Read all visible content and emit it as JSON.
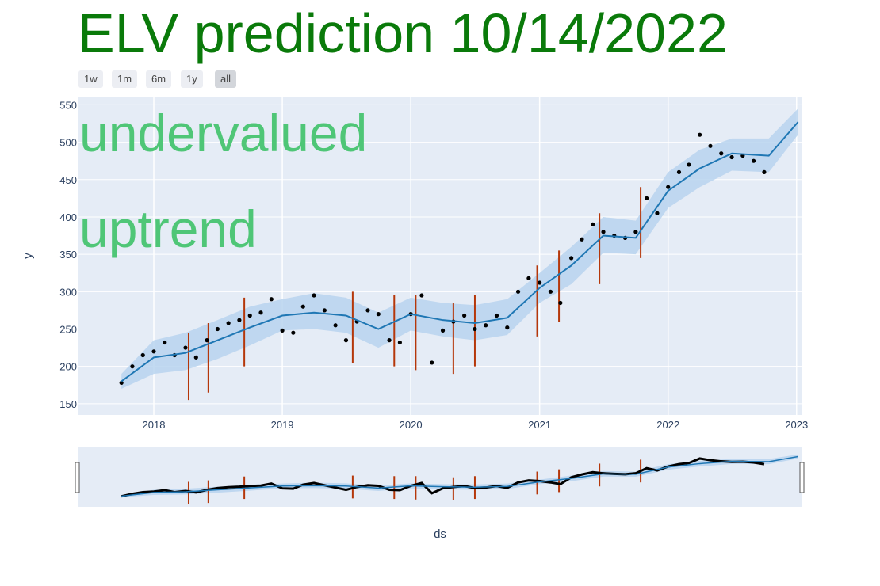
{
  "title": "ELV prediction 10/14/2022",
  "range_selector": [
    "1w",
    "1m",
    "6m",
    "1y",
    "all"
  ],
  "range_selector_active": "all",
  "annotations": [
    "undervalued",
    "uptrend"
  ],
  "colors": {
    "title": "#0a7a0a",
    "annotation": "#4fc677",
    "points": "#000000",
    "trend": "#1f77b4",
    "band": "#b9d3ee",
    "changepoints": "#b5370a",
    "plot_bg": "#e5ecf6"
  },
  "chart_data": {
    "type": "line",
    "xlabel": "ds",
    "ylabel": "y",
    "x_ticks": [
      "2018",
      "2019",
      "2020",
      "2021",
      "2022",
      "2023"
    ],
    "y_ticks": [
      150,
      200,
      250,
      300,
      350,
      400,
      450,
      500,
      550
    ],
    "xlim": [
      "2017-06-01",
      "2023-01-15"
    ],
    "ylim": [
      135,
      560
    ],
    "grid": true,
    "rangeslider": true,
    "series": [
      {
        "name": "",
        "kind": "actual",
        "x": [
          "2017-10-01",
          "2017-11-01",
          "2017-12-01",
          "2018-01-01",
          "2018-02-01",
          "2018-03-01",
          "2018-04-01",
          "2018-05-01",
          "2018-06-01",
          "2018-07-01",
          "2018-08-01",
          "2018-09-01",
          "2018-10-01",
          "2018-11-01",
          "2018-12-01",
          "2019-01-01",
          "2019-02-01",
          "2019-03-01",
          "2019-04-01",
          "2019-05-01",
          "2019-06-01",
          "2019-07-01",
          "2019-08-01",
          "2019-09-01",
          "2019-10-01",
          "2019-11-01",
          "2019-12-01",
          "2020-01-01",
          "2020-02-01",
          "2020-03-01",
          "2020-04-01",
          "2020-05-01",
          "2020-06-01",
          "2020-07-01",
          "2020-08-01",
          "2020-09-01",
          "2020-10-01",
          "2020-11-01",
          "2020-12-01",
          "2021-01-01",
          "2021-02-01",
          "2021-03-01",
          "2021-04-01",
          "2021-05-01",
          "2021-06-01",
          "2021-07-01",
          "2021-08-01",
          "2021-09-01",
          "2021-10-01",
          "2021-11-01",
          "2021-12-01",
          "2022-01-01",
          "2022-02-01",
          "2022-03-01",
          "2022-04-01",
          "2022-05-01",
          "2022-06-01",
          "2022-07-01",
          "2022-08-01",
          "2022-09-01",
          "2022-10-01"
        ],
        "y": [
          178,
          200,
          215,
          220,
          232,
          215,
          225,
          212,
          235,
          250,
          258,
          262,
          268,
          272,
          290,
          248,
          245,
          280,
          295,
          275,
          255,
          235,
          260,
          275,
          270,
          235,
          232,
          270,
          295,
          205,
          248,
          260,
          268,
          250,
          255,
          268,
          252,
          300,
          318,
          312,
          300,
          285,
          345,
          370,
          390,
          380,
          375,
          372,
          380,
          425,
          405,
          440,
          460,
          470,
          510,
          495,
          485,
          480,
          482,
          475,
          460
        ]
      },
      {
        "name": "",
        "kind": "trend",
        "x": [
          "2017-10-01",
          "2018-01-01",
          "2018-04-01",
          "2018-07-01",
          "2018-10-01",
          "2019-01-01",
          "2019-04-01",
          "2019-07-01",
          "2019-10-01",
          "2020-01-01",
          "2020-04-01",
          "2020-07-01",
          "2020-10-01",
          "2021-01-01",
          "2021-04-01",
          "2021-07-01",
          "2021-10-01",
          "2022-01-01",
          "2022-04-01",
          "2022-07-01",
          "2022-10-14",
          "2023-01-05"
        ],
        "y": [
          180,
          212,
          218,
          235,
          252,
          268,
          272,
          268,
          250,
          270,
          262,
          258,
          265,
          305,
          335,
          375,
          372,
          435,
          465,
          485,
          482,
          527
        ],
        "upper": [
          190,
          235,
          245,
          262,
          280,
          290,
          298,
          292,
          272,
          292,
          285,
          282,
          290,
          325,
          360,
          400,
          395,
          460,
          490,
          505,
          505,
          545
        ],
        "lower": [
          170,
          190,
          195,
          210,
          228,
          248,
          250,
          245,
          225,
          248,
          240,
          235,
          242,
          285,
          310,
          352,
          350,
          412,
          440,
          462,
          460,
          510
        ]
      },
      {
        "name": "",
        "kind": "changepoints",
        "x": [
          "2018-04-10",
          "2018-06-05",
          "2018-09-15",
          "2019-07-20",
          "2019-11-15",
          "2020-01-15",
          "2020-05-01",
          "2020-07-01",
          "2020-12-25",
          "2021-02-25",
          "2021-06-20",
          "2021-10-15"
        ],
        "top": [
          245,
          258,
          292,
          300,
          295,
          295,
          285,
          295,
          335,
          355,
          405,
          440
        ],
        "bottom": [
          155,
          165,
          200,
          205,
          200,
          195,
          190,
          200,
          240,
          260,
          310,
          345
        ]
      }
    ]
  }
}
